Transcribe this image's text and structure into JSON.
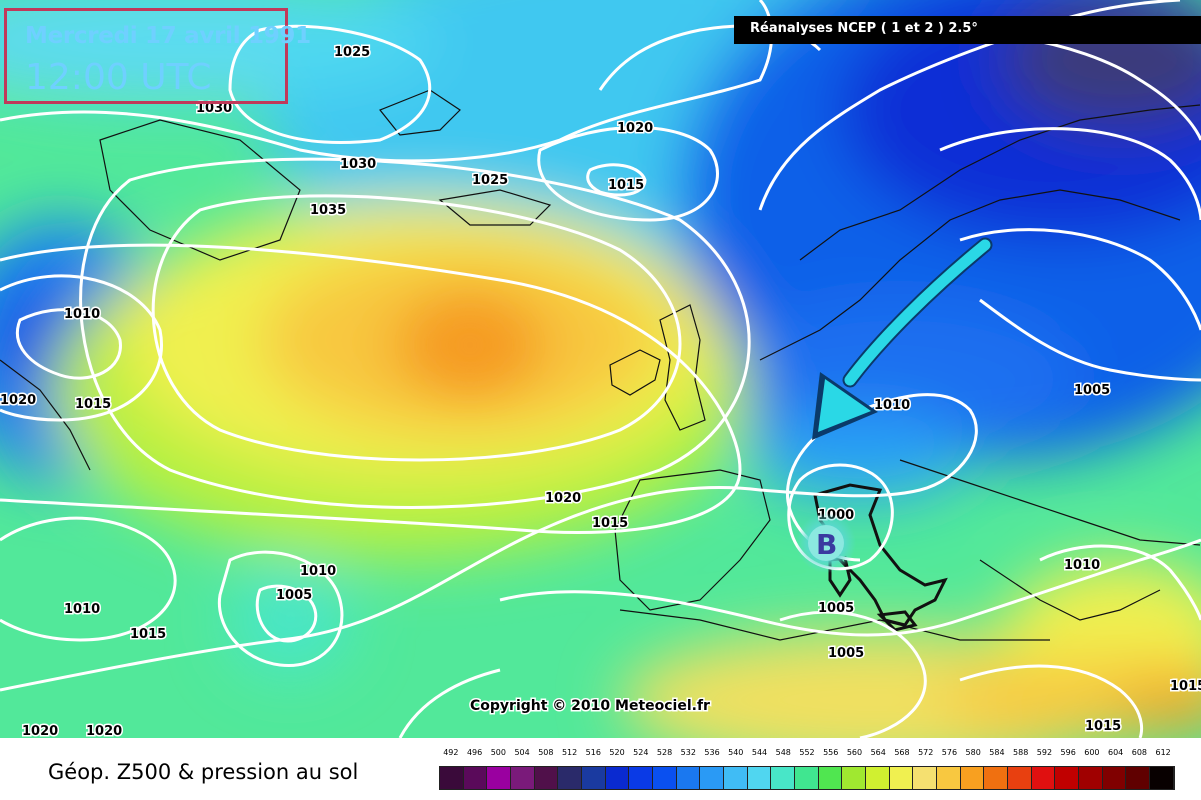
{
  "header": {
    "date": "Mercredi 17 avril 1991",
    "time": "12:00 UTC"
  },
  "source": "Réanalyses NCEP ( 1 et 2 ) 2.5°",
  "map": {
    "copyright": "Copyright © 2010 Meteociel.fr",
    "low_marker": "B",
    "arrow_color": "#2ad8e6",
    "isobar_color": "#ffffff",
    "isobar_labels": [
      "1025",
      "1030",
      "1030",
      "1035",
      "1020",
      "1025",
      "1015",
      "1010",
      "1015",
      "1020",
      "1010",
      "1005",
      "1020",
      "1015",
      "1000",
      "1005",
      "1005",
      "1010",
      "1010",
      "1005",
      "1015",
      "1010",
      "1020",
      "1020",
      "1015",
      "1015",
      "1010"
    ]
  },
  "legend": {
    "title": "Géop. Z500 & pression au sol",
    "values": [
      "492",
      "496",
      "500",
      "504",
      "508",
      "512",
      "516",
      "520",
      "524",
      "528",
      "532",
      "536",
      "540",
      "544",
      "548",
      "552",
      "556",
      "560",
      "564",
      "568",
      "572",
      "576",
      "580",
      "584",
      "588",
      "592",
      "596",
      "600",
      "604",
      "608",
      "612"
    ],
    "colors": [
      "#3a0a3a",
      "#5a0a5a",
      "#9a00a0",
      "#7a1a7a",
      "#50104a",
      "#2a2a6a",
      "#1a3aa0",
      "#0a2ad0",
      "#0a3ae6",
      "#0a50f0",
      "#1a78f0",
      "#2a9af5",
      "#40bcf5",
      "#50d6f0",
      "#48e6c8",
      "#40e690",
      "#50e650",
      "#a0e830",
      "#d0f030",
      "#f0f050",
      "#f5e070",
      "#f8c840",
      "#f8a020",
      "#f07010",
      "#e84010",
      "#e01010",
      "#c00000",
      "#a00000",
      "#800000",
      "#600000",
      "#080000"
    ]
  }
}
